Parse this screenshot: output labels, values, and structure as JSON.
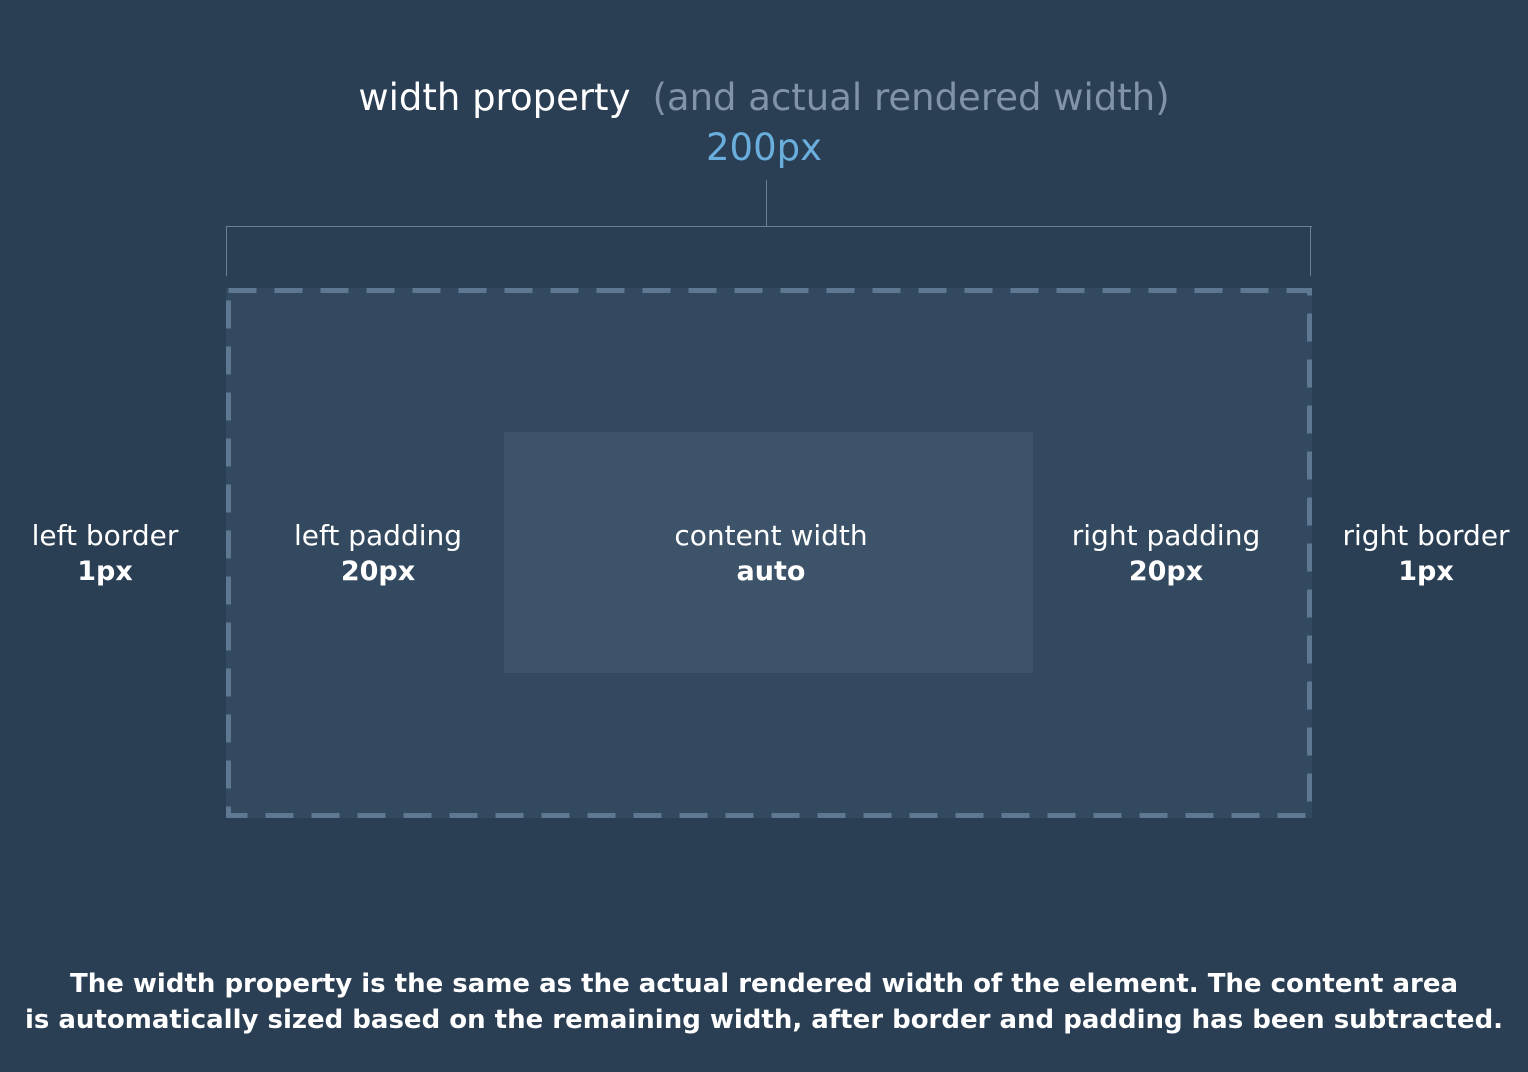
{
  "header": {
    "property_label": "width property",
    "sub_label": "(and actual rendered width)",
    "value": "200px"
  },
  "box": {
    "left_border": {
      "name": "left border",
      "value": "1px"
    },
    "left_padding": {
      "name": "left padding",
      "value": "20px"
    },
    "content_width": {
      "name": "content width",
      "value": "auto"
    },
    "right_padding": {
      "name": "right padding",
      "value": "20px"
    },
    "right_border": {
      "name": "right border",
      "value": "1px"
    }
  },
  "caption": {
    "line1": "The width property is the same as the actual rendered width of the element. The content area",
    "line2": "is automatically sized based on the remaining width, after border and padding has been subtracted."
  },
  "colors": {
    "background": "#2a3e54",
    "box_fill": "#33495f",
    "content_fill": "#3c536a",
    "dashed_border": "#5f7891",
    "accent_value": "#6aaede",
    "muted_text": "#8093a8"
  }
}
